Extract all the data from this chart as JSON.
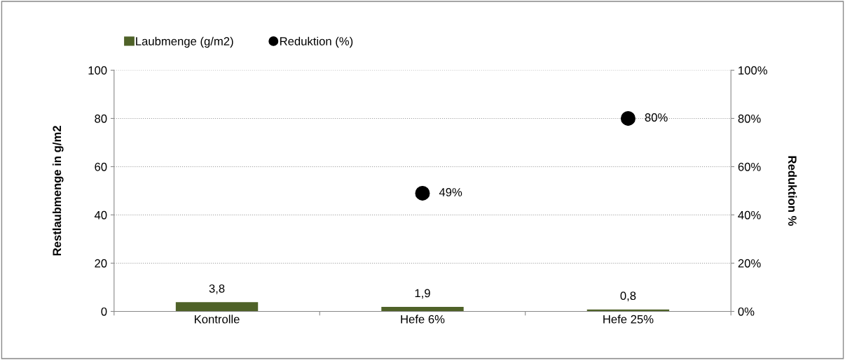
{
  "chart_data": {
    "type": "bar",
    "categories": [
      "Kontrolle",
      "Hefe 6%",
      "Hefe 25%"
    ],
    "ylabel": "Restlaubmenge in g/m2",
    "y2label": "Reduktion %",
    "ylim": [
      0,
      100
    ],
    "yticks": [
      0,
      20,
      40,
      60,
      80,
      100
    ],
    "y2lim": [
      0,
      100
    ],
    "y2ticks": [
      {
        "value": 0,
        "label": "0%"
      },
      {
        "value": 20,
        "label": "20%"
      },
      {
        "value": 40,
        "label": "40%"
      },
      {
        "value": 60,
        "label": "60%"
      },
      {
        "value": 80,
        "label": "80%"
      },
      {
        "value": 100,
        "label": "100%"
      }
    ],
    "grid": "y",
    "legend": "top left",
    "series": [
      {
        "name": "Laubmenge (g/m2)",
        "color": "#4f6228",
        "values": [
          3.8,
          1.9,
          0.8
        ],
        "value_labels": [
          "3,8",
          "1,9",
          "0,8"
        ]
      },
      {
        "name": "Reduktion (%)",
        "type": "scatter",
        "axis": "y2",
        "marker": "circle",
        "color": "#000000",
        "values": [
          null,
          49,
          80
        ],
        "value_labels": [
          null,
          "49%",
          "80%"
        ]
      }
    ]
  }
}
